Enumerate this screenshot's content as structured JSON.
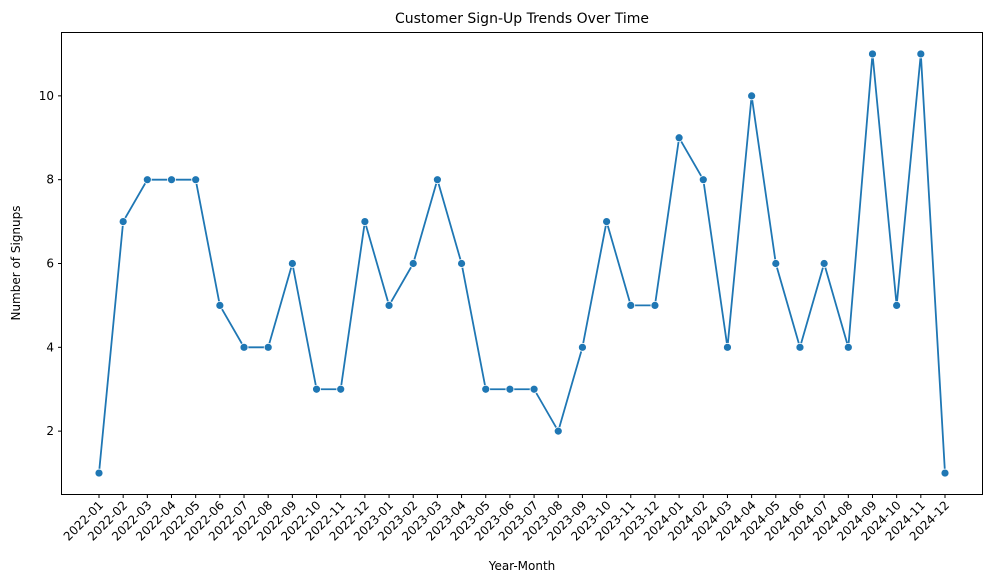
{
  "chart_data": {
    "type": "line",
    "title": "Customer Sign-Up Trends Over Time",
    "xlabel": "Year-Month",
    "ylabel": "Number of Signups",
    "ylim": [
      0.5,
      11.5
    ],
    "yticks": [
      2,
      4,
      6,
      8,
      10
    ],
    "grid": false,
    "legend": "none",
    "color": "#1f77b4",
    "categories": [
      "2022-01",
      "2022-02",
      "2022-03",
      "2022-04",
      "2022-05",
      "2022-06",
      "2022-07",
      "2022-08",
      "2022-09",
      "2022-10",
      "2022-11",
      "2022-12",
      "2023-01",
      "2023-02",
      "2023-03",
      "2023-04",
      "2023-05",
      "2023-06",
      "2023-07",
      "2023-08",
      "2023-09",
      "2023-10",
      "2023-11",
      "2023-12",
      "2024-01",
      "2024-02",
      "2024-03",
      "2024-04",
      "2024-05",
      "2024-06",
      "2024-07",
      "2024-08",
      "2024-09",
      "2024-10",
      "2024-11",
      "2024-12"
    ],
    "values": [
      1,
      7,
      8,
      8,
      8,
      5,
      4,
      4,
      6,
      3,
      3,
      7,
      5,
      6,
      8,
      6,
      3,
      3,
      3,
      2,
      4,
      7,
      5,
      5,
      9,
      8,
      4,
      10,
      6,
      4,
      6,
      4,
      11,
      5,
      11,
      1
    ]
  }
}
